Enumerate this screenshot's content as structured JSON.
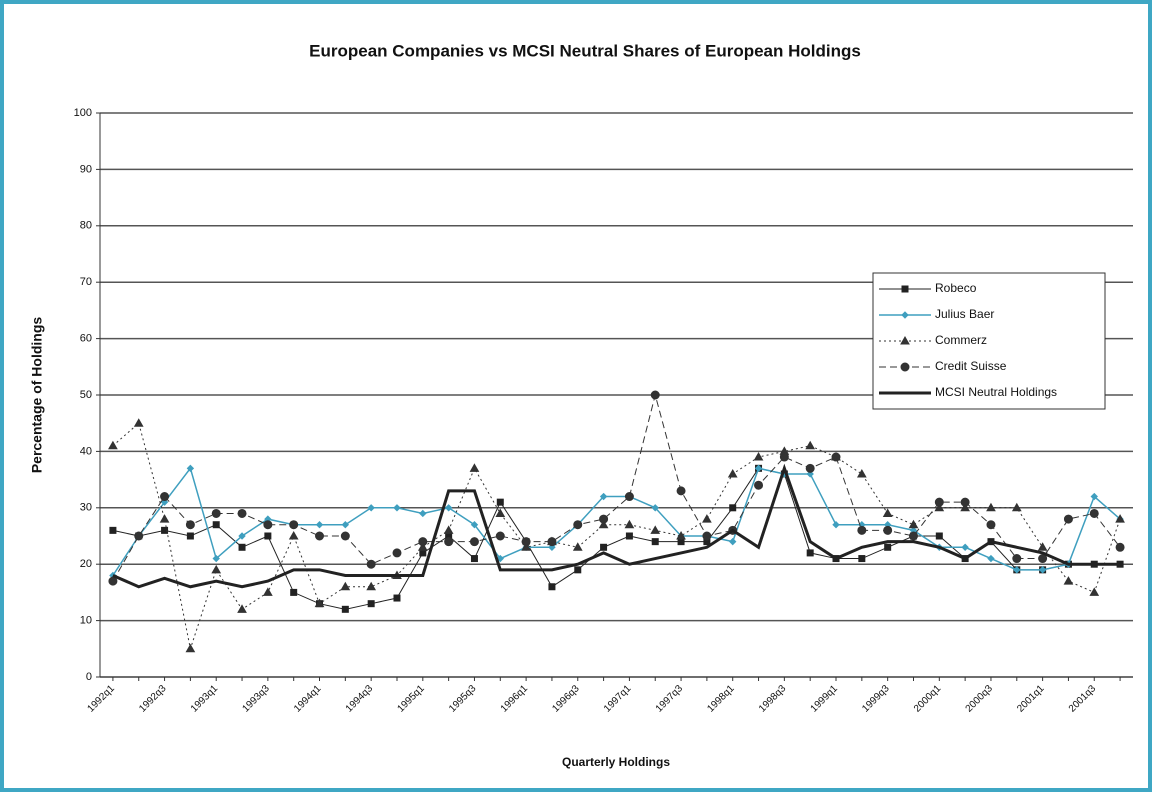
{
  "chart_data": {
    "type": "line",
    "title": "European Companies vs MCSI Neutral Shares of European Holdings",
    "x_label": "Quarterly Holdings",
    "y_label": "Percentage of Holdings",
    "categories": [
      "1992q1",
      null,
      "1992q3",
      null,
      "1993q1",
      null,
      "1993q3",
      null,
      "1994q1",
      null,
      "1994q3",
      null,
      "1995q1",
      null,
      "1995q3",
      null,
      "1996q1",
      null,
      "1996q3",
      null,
      "1997q1",
      null,
      "1997q3",
      null,
      "1998q1",
      null,
      "1998q3",
      null,
      "1999q1",
      null,
      "1999q3",
      null,
      "2000q1",
      null,
      "2000q3",
      null,
      "2001q1",
      null,
      "2001q3",
      null
    ],
    "ylim": [
      0,
      100
    ],
    "yticks": [
      0,
      10,
      20,
      30,
      40,
      50,
      60,
      70,
      80,
      90,
      100
    ],
    "grid": true,
    "legend": "right",
    "series": [
      {
        "name": "Robeco",
        "color": "#222222",
        "marker": "square",
        "dash": "solid",
        "width": 1,
        "values": [
          26,
          25,
          26,
          25,
          27,
          23,
          25,
          15,
          13,
          12,
          13,
          14,
          22,
          25,
          21,
          31,
          24,
          16,
          19,
          23,
          25,
          24,
          24,
          24,
          30,
          37,
          36,
          22,
          21,
          21,
          23,
          25,
          25,
          21,
          24,
          19,
          19,
          20,
          20,
          20
        ]
      },
      {
        "name": "Julius Baer",
        "color": "#3f9fbf",
        "marker": "diamond",
        "dash": "solid",
        "width": 1.5,
        "values": [
          18,
          25,
          31,
          37,
          21,
          25,
          28,
          27,
          27,
          27,
          30,
          30,
          29,
          30,
          27,
          21,
          23,
          23,
          27,
          32,
          32,
          30,
          25,
          25,
          24,
          37,
          36,
          36,
          27,
          27,
          27,
          26,
          23,
          23,
          21,
          19,
          19,
          20,
          32,
          28
        ]
      },
      {
        "name": "Commerz",
        "color": "#333333",
        "marker": "triangle",
        "dash": "2,3",
        "width": 1,
        "values": [
          41,
          45,
          28,
          5,
          19,
          12,
          15,
          25,
          13,
          16,
          16,
          18,
          23,
          26,
          37,
          29,
          23,
          24,
          23,
          27,
          27,
          26,
          25,
          28,
          36,
          39,
          40,
          41,
          39,
          36,
          29,
          27,
          30,
          30,
          30,
          30,
          23,
          17,
          15,
          28
        ]
      },
      {
        "name": "Credit Suisse",
        "color": "#333333",
        "marker": "circle",
        "dash": "7,4",
        "width": 1,
        "values": [
          17,
          25,
          32,
          27,
          29,
          29,
          27,
          27,
          25,
          25,
          20,
          22,
          24,
          24,
          24,
          25,
          24,
          24,
          27,
          28,
          32,
          50,
          33,
          25,
          26,
          34,
          39,
          37,
          39,
          26,
          26,
          25,
          31,
          31,
          27,
          21,
          21,
          28,
          29,
          23
        ]
      },
      {
        "name": "MCSI Neutral Holdings",
        "color": "#222222",
        "marker": "none",
        "dash": "solid",
        "width": 3,
        "values": [
          18,
          16,
          17.5,
          16,
          17,
          16,
          17,
          19,
          19,
          18,
          18,
          18,
          18,
          33,
          33,
          19,
          19,
          19,
          20,
          22,
          20,
          21,
          22,
          23,
          26,
          23,
          37,
          24,
          21,
          23,
          24,
          24,
          23,
          21,
          24,
          23,
          22,
          20,
          20,
          20
        ]
      }
    ]
  }
}
